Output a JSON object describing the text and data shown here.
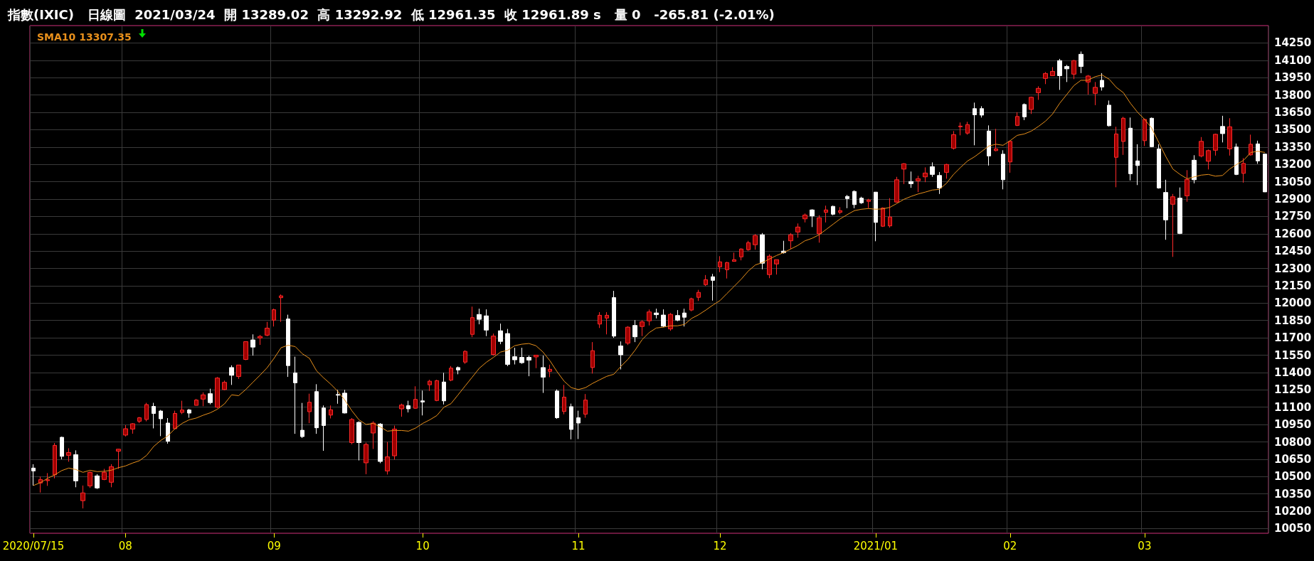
{
  "chart_data": {
    "type": "candlestick",
    "title": "指數(IXIC)   日線圖  2021/03/24  開 13289.02  高 13292.92  低 12961.35  收 12961.89 s   量 0   -265.81 (-2.01%)",
    "categories": [
      "2020/07/15",
      null,
      null,
      null,
      null,
      null,
      null,
      null,
      null,
      null,
      null,
      null,
      null,
      "08",
      null,
      null,
      null,
      null,
      null,
      null,
      null,
      null,
      null,
      null,
      null,
      null,
      null,
      null,
      null,
      null,
      null,
      null,
      null,
      null,
      "09",
      null,
      null,
      null,
      null,
      null,
      null,
      null,
      null,
      null,
      null,
      null,
      null,
      null,
      null,
      null,
      null,
      null,
      null,
      null,
      null,
      "10",
      null,
      null,
      null,
      null,
      null,
      null,
      null,
      null,
      null,
      null,
      null,
      null,
      null,
      null,
      null,
      null,
      null,
      null,
      null,
      null,
      null,
      "11",
      null,
      null,
      null,
      null,
      null,
      null,
      null,
      null,
      null,
      null,
      null,
      null,
      null,
      null,
      null,
      null,
      null,
      null,
      null,
      "12",
      null,
      null,
      null,
      null,
      null,
      null,
      null,
      null,
      null,
      null,
      null,
      null,
      null,
      null,
      null,
      null,
      null,
      null,
      null,
      null,
      null,
      "2021/01",
      null,
      null,
      null,
      null,
      null,
      null,
      null,
      null,
      null,
      null,
      null,
      null,
      null,
      null,
      null,
      null,
      null,
      null,
      "02",
      null,
      null,
      null,
      null,
      null,
      null,
      null,
      null,
      null,
      null,
      null,
      null,
      null,
      null,
      null,
      null,
      null,
      null,
      "03",
      null,
      null,
      null,
      null,
      null,
      null,
      null,
      null,
      null,
      null,
      null,
      null,
      null,
      null,
      null,
      null,
      null
    ],
    "ohlc": [
      [
        10574,
        10607,
        10423,
        10549
      ],
      [
        10445,
        10500,
        10362,
        10475
      ],
      [
        10465,
        10530,
        10420,
        10473
      ],
      [
        10515,
        10790,
        10485,
        10770
      ],
      [
        10840,
        10845,
        10650,
        10675
      ],
      [
        10684,
        10745,
        10629,
        10708
      ],
      [
        10690,
        10727,
        10408,
        10463
      ],
      [
        10292,
        10423,
        10225,
        10359
      ],
      [
        10420,
        10546,
        10402,
        10537
      ],
      [
        10506,
        10521,
        10393,
        10402
      ],
      [
        10475,
        10567,
        10469,
        10537
      ],
      [
        10451,
        10607,
        10408,
        10586
      ],
      [
        10720,
        10740,
        10567,
        10737
      ],
      [
        10859,
        10945,
        10847,
        10914
      ],
      [
        10911,
        10963,
        10871,
        10957
      ],
      [
        10978,
        11015,
        10963,
        11009
      ],
      [
        10994,
        11138,
        10978,
        11123
      ],
      [
        11107,
        11138,
        10917,
        11046
      ],
      [
        11067,
        11076,
        10850,
        11000
      ],
      [
        10963,
        11006,
        10785,
        10806
      ],
      [
        10914,
        11070,
        10908,
        11046
      ],
      [
        11055,
        11156,
        11040,
        11076
      ],
      [
        11076,
        11085,
        11009,
        11049
      ],
      [
        11116,
        11171,
        11116,
        11162
      ],
      [
        11170,
        11228,
        11109,
        11207
      ],
      [
        11217,
        11260,
        11125,
        11140
      ],
      [
        11100,
        11361,
        11091,
        11352
      ],
      [
        11253,
        11330,
        11247,
        11315
      ],
      [
        11443,
        11462,
        11293,
        11376
      ],
      [
        11366,
        11465,
        11345,
        11465
      ],
      [
        11513,
        11667,
        11507,
        11667
      ],
      [
        11682,
        11730,
        11546,
        11620
      ],
      [
        11699,
        11725,
        11639,
        11712
      ],
      [
        11723,
        11838,
        11714,
        11784
      ],
      [
        11853,
        11952,
        11798,
        11943
      ],
      [
        12047,
        12075,
        11838,
        12063
      ],
      [
        11863,
        11900,
        11362,
        11460
      ],
      [
        11397,
        11537,
        10870,
        11311
      ],
      [
        10901,
        11137,
        10834,
        10846
      ],
      [
        11061,
        11217,
        10962,
        11143
      ],
      [
        11235,
        11299,
        10870,
        10922
      ],
      [
        11093,
        11115,
        10723,
        10942
      ],
      [
        11032,
        11115,
        11003,
        11078
      ],
      [
        11210,
        11250,
        11130,
        11204
      ],
      [
        11222,
        11250,
        11046,
        11050
      ],
      [
        10794,
        11006,
        10779,
        10994
      ],
      [
        10969,
        10978,
        10640,
        10794
      ],
      [
        10619,
        10794,
        10521,
        10778
      ],
      [
        10877,
        10978,
        10739,
        10963
      ],
      [
        10954,
        10963,
        10616,
        10631
      ],
      [
        10549,
        10800,
        10518,
        10671
      ],
      [
        10680,
        10941,
        10647,
        10911
      ],
      [
        11086,
        11131,
        11018,
        11119
      ],
      [
        11113,
        11156,
        11055,
        11086
      ],
      [
        11091,
        11281,
        11086,
        11168
      ],
      [
        11155,
        11244,
        11029,
        11145
      ],
      [
        11294,
        11337,
        11241,
        11325
      ],
      [
        11158,
        11337,
        11152,
        11330
      ],
      [
        11318,
        11398,
        11124,
        11155
      ],
      [
        11334,
        11456,
        11325,
        11438
      ],
      [
        11443,
        11452,
        11385,
        11422
      ],
      [
        11490,
        11592,
        11475,
        11583
      ],
      [
        11730,
        11970,
        11706,
        11875
      ],
      [
        11902,
        11952,
        11817,
        11860
      ],
      [
        11890,
        11946,
        11715,
        11767
      ],
      [
        11556,
        11737,
        11546,
        11715
      ],
      [
        11761,
        11823,
        11645,
        11669
      ],
      [
        11737,
        11777,
        11455,
        11470
      ],
      [
        11537,
        11614,
        11470,
        11510
      ],
      [
        11531,
        11614,
        11475,
        11485
      ],
      [
        11531,
        11546,
        11368,
        11507
      ],
      [
        11535,
        11550,
        11438,
        11550
      ],
      [
        11443,
        11546,
        11224,
        11360
      ],
      [
        11410,
        11468,
        11360,
        11428
      ],
      [
        11240,
        11254,
        11000,
        11009
      ],
      [
        11063,
        11293,
        11039,
        11187
      ],
      [
        11105,
        11131,
        10822,
        10908
      ],
      [
        11009,
        11070,
        10825,
        10963
      ],
      [
        11040,
        11214,
        11009,
        11162
      ],
      [
        11443,
        11663,
        11391,
        11589
      ],
      [
        11819,
        11922,
        11785,
        11895
      ],
      [
        11871,
        11922,
        11730,
        11895
      ],
      [
        12048,
        12106,
        11700,
        11715
      ],
      [
        11630,
        11669,
        11427,
        11553
      ],
      [
        11654,
        11801,
        11638,
        11792
      ],
      [
        11807,
        11853,
        11663,
        11709
      ],
      [
        11798,
        11853,
        11715,
        11838
      ],
      [
        11847,
        11945,
        11807,
        11924
      ],
      [
        11915,
        11952,
        11868,
        11900
      ],
      [
        11897,
        11946,
        11792,
        11801
      ],
      [
        11777,
        11915,
        11761,
        11903
      ],
      [
        11893,
        11940,
        11844,
        11853
      ],
      [
        11915,
        11952,
        11798,
        11878
      ],
      [
        11940,
        12047,
        11930,
        12038
      ],
      [
        12050,
        12115,
        12019,
        12093
      ],
      [
        12160,
        12243,
        12148,
        12203
      ],
      [
        12228,
        12253,
        12022,
        12197
      ],
      [
        12314,
        12406,
        12268,
        12357
      ],
      [
        12289,
        12357,
        12213,
        12351
      ],
      [
        12361,
        12437,
        12361,
        12376
      ],
      [
        12400,
        12474,
        12370,
        12468
      ],
      [
        12462,
        12539,
        12453,
        12523
      ],
      [
        12505,
        12597,
        12462,
        12585
      ],
      [
        12591,
        12606,
        12293,
        12345
      ],
      [
        12247,
        12422,
        12216,
        12406
      ],
      [
        12339,
        12376,
        12247,
        12376
      ],
      [
        12450,
        12539,
        12428,
        12437
      ],
      [
        12539,
        12606,
        12468,
        12591
      ],
      [
        12615,
        12689,
        12566,
        12658
      ],
      [
        12729,
        12775,
        12698,
        12762
      ],
      [
        12806,
        12812,
        12658,
        12754
      ],
      [
        12600,
        12760,
        12523,
        12738
      ],
      [
        12785,
        12843,
        12698,
        12806
      ],
      [
        12837,
        12843,
        12760,
        12769
      ],
      [
        12785,
        12830,
        12769,
        12800
      ],
      [
        12923,
        12935,
        12821,
        12904
      ],
      [
        12966,
        12975,
        12821,
        12852
      ],
      [
        12908,
        12920,
        12858,
        12868
      ],
      [
        12880,
        12902,
        12821,
        12892
      ],
      [
        12960,
        12960,
        12535,
        12698
      ],
      [
        12665,
        12828,
        12659,
        12822
      ],
      [
        12668,
        12908,
        12653,
        12745
      ],
      [
        12874,
        13092,
        12868,
        13067
      ],
      [
        13159,
        13211,
        13030,
        13205
      ],
      [
        13052,
        13138,
        12997,
        13033
      ],
      [
        13058,
        13101,
        12960,
        13076
      ],
      [
        13092,
        13174,
        13046,
        13125
      ],
      [
        13180,
        13217,
        13092,
        13113
      ],
      [
        13104,
        13134,
        12944,
        12996
      ],
      [
        13131,
        13205,
        13076,
        13199
      ],
      [
        13340,
        13488,
        13328,
        13457
      ],
      [
        13525,
        13562,
        13451,
        13531
      ],
      [
        13470,
        13568,
        13457,
        13544
      ],
      [
        13682,
        13734,
        13365,
        13629
      ],
      [
        13682,
        13703,
        13605,
        13626
      ],
      [
        13488,
        13537,
        13190,
        13273
      ],
      [
        13319,
        13507,
        13313,
        13334
      ],
      [
        13288,
        13322,
        12984,
        13067
      ],
      [
        13221,
        13405,
        13128,
        13399
      ],
      [
        13537,
        13651,
        13531,
        13614
      ],
      [
        13718,
        13727,
        13583,
        13611
      ],
      [
        13675,
        13786,
        13636,
        13780
      ],
      [
        13820,
        13875,
        13758,
        13857
      ],
      [
        13943,
        13998,
        13894,
        13986
      ],
      [
        13967,
        14041,
        13964,
        14004
      ],
      [
        14097,
        14112,
        13844,
        13967
      ],
      [
        14047,
        14060,
        13912,
        14026
      ],
      [
        13980,
        14103,
        13937,
        14097
      ],
      [
        14152,
        14176,
        13989,
        14047
      ],
      [
        13912,
        13973,
        13804,
        13964
      ],
      [
        13814,
        13912,
        13712,
        13866
      ],
      [
        13927,
        13989,
        13838,
        13869
      ],
      [
        13712,
        13752,
        13528,
        13534
      ],
      [
        13261,
        13525,
        13002,
        13463
      ],
      [
        13398,
        13611,
        13282,
        13599
      ],
      [
        13513,
        13605,
        13061,
        13119
      ],
      [
        13230,
        13374,
        13021,
        13190
      ],
      [
        13405,
        13596,
        13359,
        13589
      ],
      [
        13599,
        13605,
        13350,
        13353
      ],
      [
        13334,
        13374,
        12990,
        12996
      ],
      [
        12957,
        13067,
        12548,
        12720
      ],
      [
        12855,
        12944,
        12400,
        12920
      ],
      [
        12908,
        13000,
        12597,
        12603
      ],
      [
        12928,
        13150,
        12877,
        13070
      ],
      [
        13236,
        13279,
        13036,
        13067
      ],
      [
        13273,
        13436,
        13261,
        13399
      ],
      [
        13227,
        13328,
        13156,
        13319
      ],
      [
        13322,
        13466,
        13276,
        13460
      ],
      [
        13528,
        13620,
        13390,
        13466
      ],
      [
        13334,
        13599,
        13276,
        13525
      ],
      [
        13350,
        13380,
        13107,
        13113
      ],
      [
        13122,
        13254,
        13042,
        13208
      ],
      [
        13282,
        13457,
        13276,
        13374
      ],
      [
        13377,
        13405,
        13205,
        13230
      ],
      [
        13289,
        13293,
        12961,
        12962
      ]
    ],
    "series": [
      {
        "type": "line",
        "name": "SMA10 13307.35",
        "color": "#e8901c",
        "values": [
          10423,
          10448,
          10485,
          10515,
          10552,
          10574,
          10561,
          10537,
          10555,
          10543,
          10546,
          10555,
          10577,
          10592,
          10617,
          10638,
          10684,
          10761,
          10813,
          10853,
          10914,
          10960,
          10991,
          11006,
          11031,
          11052,
          11083,
          11129,
          11207,
          11200,
          11253,
          11315,
          11376,
          11440,
          11523,
          11615,
          11636,
          11624,
          11562,
          11523,
          11415,
          11354,
          11300,
          11238,
          11161,
          11069,
          10991,
          10951,
          10960,
          10930,
          10893,
          10899,
          10899,
          10893,
          10920,
          10960,
          10991,
          11028,
          11100,
          11131,
          11207,
          11284,
          11360,
          11437,
          11489,
          11531,
          11577,
          11592,
          11632,
          11645,
          11651,
          11632,
          11577,
          11500,
          11406,
          11324,
          11269,
          11253,
          11269,
          11306,
          11337,
          11367,
          11385,
          11453,
          11514,
          11592,
          11684,
          11745,
          11785,
          11792,
          11804,
          11804,
          11816,
          11868,
          11900,
          11940,
          11983,
          12022,
          12084,
          12145,
          12207,
          12277,
          12330,
          12351,
          12382,
          12412,
          12437,
          12468,
          12499,
          12539,
          12560,
          12591,
          12637,
          12683,
          12729,
          12766,
          12800,
          12812,
          12818,
          12812,
          12815,
          12828,
          12862,
          12898,
          12923,
          12944,
          12960,
          12978,
          12984,
          13036,
          13113,
          13174,
          13230,
          13267,
          13313,
          13359,
          13374,
          13365,
          13405,
          13451,
          13463,
          13488,
          13528,
          13574,
          13636,
          13728,
          13804,
          13881,
          13927,
          13927,
          13958,
          13973,
          13936,
          13866,
          13820,
          13728,
          13651,
          13589,
          13513,
          13390,
          13267,
          13159,
          13113,
          13076,
          13092,
          13107,
          13113,
          13098,
          13104,
          13159,
          13199,
          13236,
          13303,
          13313,
          13303
        ]
      }
    ],
    "ylim": [
      10010,
      14400
    ],
    "yticks": [
      10050,
      10200,
      10350,
      10500,
      10650,
      10800,
      10950,
      11100,
      11250,
      11400,
      11550,
      11700,
      11850,
      12000,
      12150,
      12300,
      12450,
      12600,
      12750,
      12900,
      13050,
      13200,
      13350,
      13500,
      13650,
      13800,
      13950,
      14100,
      14250
    ],
    "grid": true,
    "legend": "top left",
    "marker": "none"
  }
}
